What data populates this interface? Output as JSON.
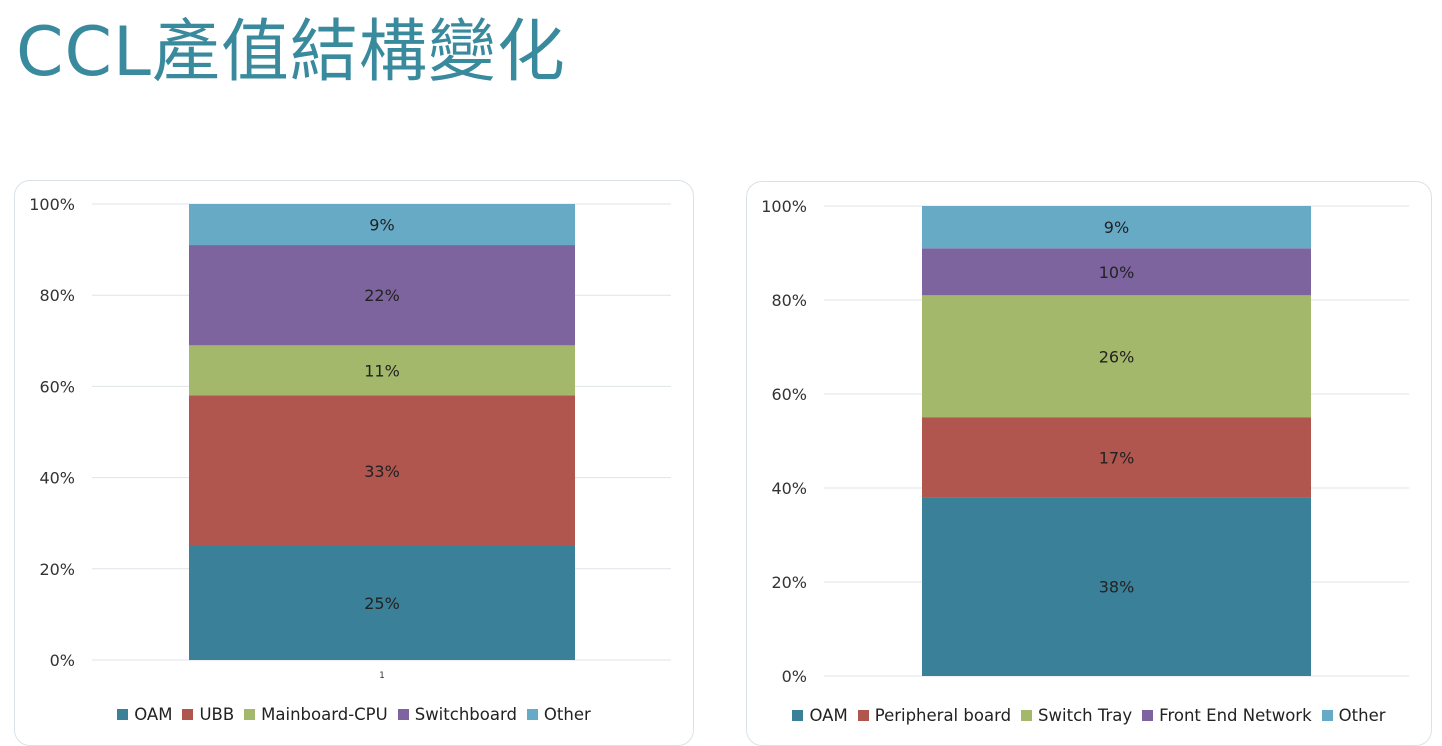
{
  "slide": {
    "title": "CCL產值結構變化"
  },
  "colors": {
    "OAM": "#3a8099",
    "UBB": "#b1554f",
    "Peripheral board": "#b1554f",
    "Mainboard-CPU": "#a3b86a",
    "Switch Tray": "#a3b86a",
    "Switchboard": "#7e649e",
    "Front End Network": "#7e649e",
    "Other": "#66aac6",
    "grid": "#dfe4e8"
  },
  "chart_data": [
    {
      "type": "bar",
      "stacked": true,
      "percent": true,
      "categories": [
        "1"
      ],
      "ylim": [
        0,
        100
      ],
      "yticks": [
        "0%",
        "20%",
        "40%",
        "60%",
        "80%",
        "100%"
      ],
      "grid": true,
      "legend_position": "bottom",
      "series": [
        {
          "name": "OAM",
          "values": [
            25
          ],
          "label": "25%"
        },
        {
          "name": "UBB",
          "values": [
            33
          ],
          "label": "33%"
        },
        {
          "name": "Mainboard-CPU",
          "values": [
            11
          ],
          "label": "11%"
        },
        {
          "name": "Switchboard",
          "values": [
            22
          ],
          "label": "22%"
        },
        {
          "name": "Other",
          "values": [
            9
          ],
          "label": "9%"
        }
      ]
    },
    {
      "type": "bar",
      "stacked": true,
      "percent": true,
      "categories": [
        ""
      ],
      "ylim": [
        0,
        100
      ],
      "yticks": [
        "0%",
        "20%",
        "40%",
        "60%",
        "80%",
        "100%"
      ],
      "grid": true,
      "legend_position": "bottom",
      "series": [
        {
          "name": "OAM",
          "values": [
            38
          ],
          "label": "38%"
        },
        {
          "name": "Peripheral board",
          "values": [
            17
          ],
          "label": "17%"
        },
        {
          "name": "Switch Tray",
          "values": [
            26
          ],
          "label": "26%"
        },
        {
          "name": "Front End Network",
          "values": [
            10
          ],
          "label": "10%"
        },
        {
          "name": "Other",
          "values": [
            9
          ],
          "label": "9%"
        }
      ]
    }
  ]
}
